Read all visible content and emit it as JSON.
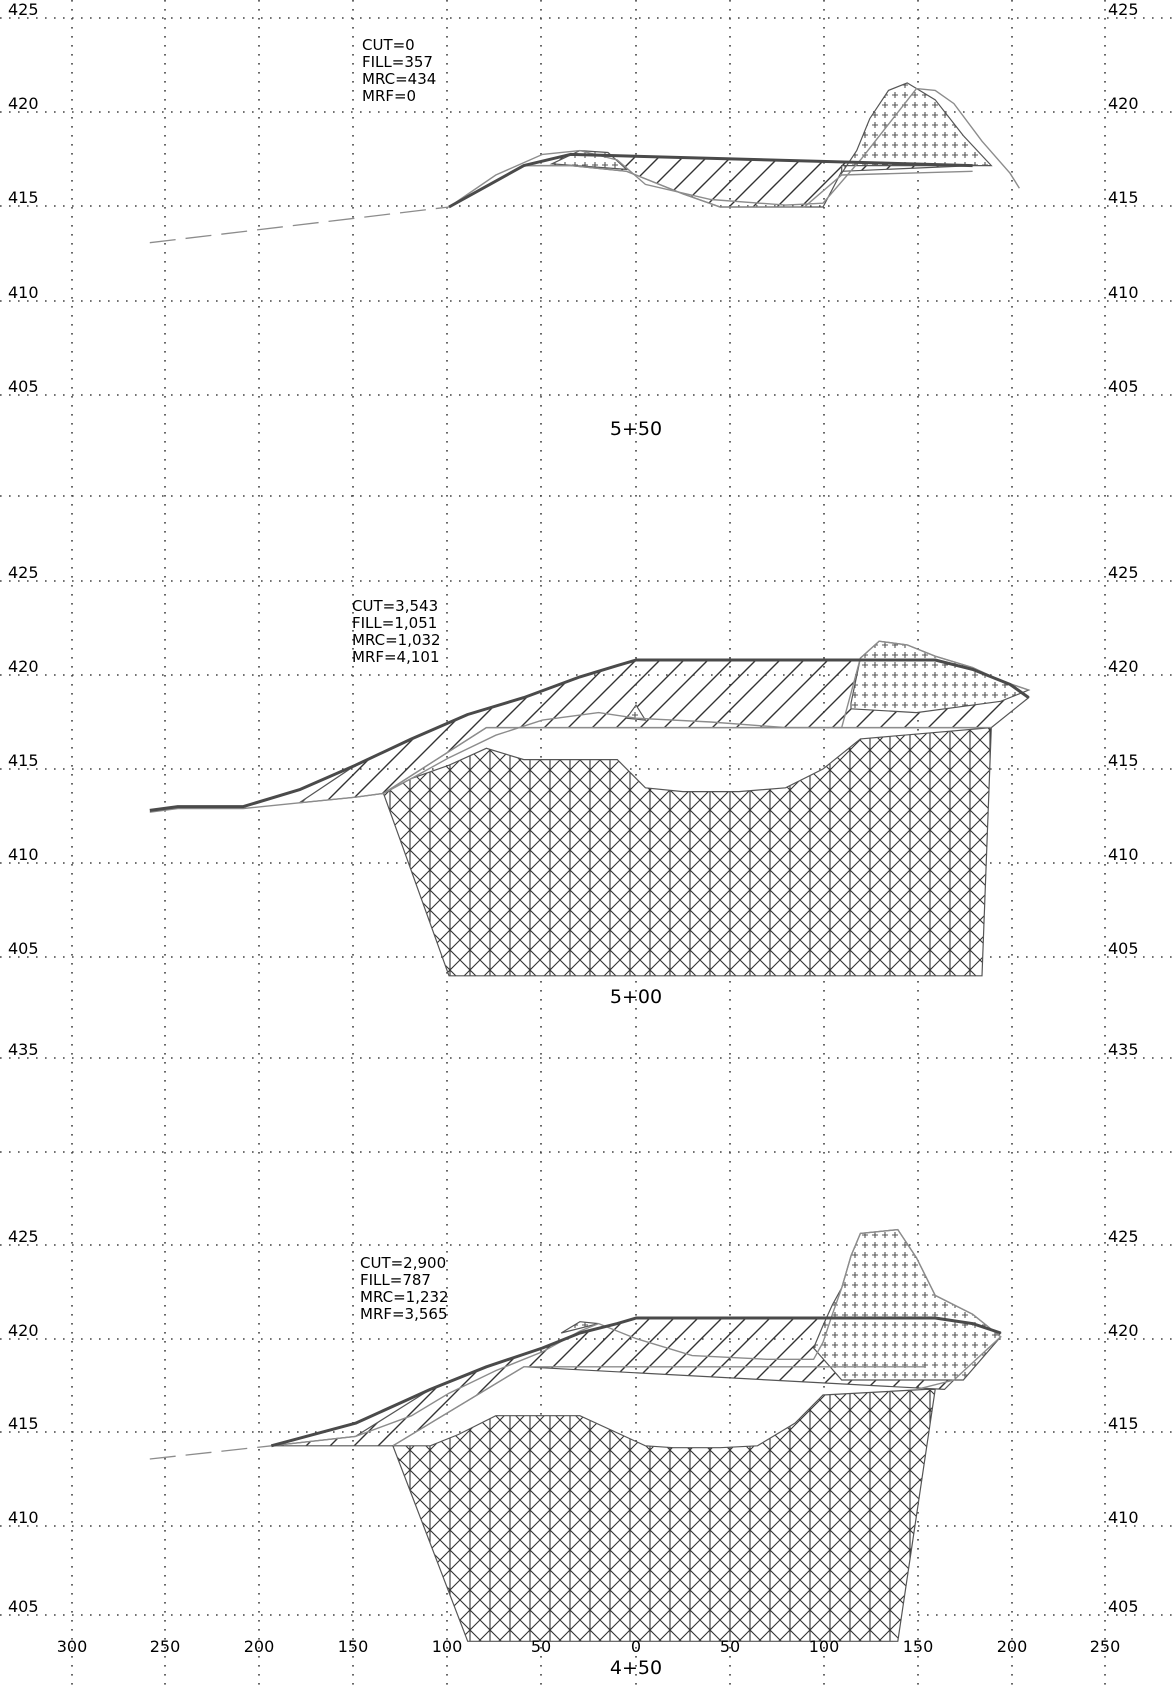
{
  "x_axis": {
    "ticks": [
      "300",
      "250",
      "200",
      "150",
      "100",
      "50",
      "0",
      "50",
      "100",
      "150",
      "200",
      "250"
    ],
    "values": [
      -300,
      -250,
      -200,
      -150,
      -100,
      -50,
      0,
      50,
      100,
      150,
      200,
      250
    ]
  },
  "sections": [
    {
      "station": "5+50",
      "elevations": [
        "425",
        "420",
        "415",
        "410",
        "405"
      ],
      "elevation_values": [
        425,
        420,
        415,
        410,
        405
      ],
      "volumes": [
        "CUT=0",
        "FILL=357",
        "MRC=434",
        "MRF=0"
      ],
      "existing_ground_dashed": [
        [
          -260,
          413.1
        ],
        [
          -100,
          415
        ]
      ],
      "existing_ground": [
        [
          -100,
          415
        ],
        [
          -75,
          416.7
        ],
        [
          -50,
          417.8
        ],
        [
          -30,
          418
        ],
        [
          -10,
          417.5
        ],
        [
          5,
          416.2
        ],
        [
          40,
          415.4
        ],
        [
          80,
          415.1
        ],
        [
          100,
          415.2
        ],
        [
          120,
          417.5
        ],
        [
          150,
          421.3
        ],
        [
          160,
          421.2
        ],
        [
          170,
          420.5
        ],
        [
          185,
          418.5
        ],
        [
          200,
          416.8
        ],
        [
          205,
          416
        ]
      ],
      "design_surface": [
        [
          -100,
          415
        ],
        [
          -80,
          416.1
        ],
        [
          -60,
          417.2
        ],
        [
          -35,
          417.8
        ],
        [
          180,
          417.2
        ]
      ],
      "bench": [
        [
          -60,
          417.2
        ],
        [
          -35,
          417.2
        ],
        [
          -5,
          416.9
        ],
        [
          25,
          415.7
        ],
        [
          45,
          415
        ],
        [
          90,
          415
        ],
        [
          110,
          416.7
        ],
        [
          180,
          416.9
        ]
      ],
      "fill_region": [
        [
          -60,
          417.2
        ],
        [
          -35,
          417.8
        ],
        [
          180,
          417.2
        ],
        [
          110,
          416.9
        ],
        [
          100,
          415
        ],
        [
          45,
          415
        ],
        [
          25,
          415.7
        ],
        [
          -5,
          416.9
        ],
        [
          -35,
          417.2
        ]
      ],
      "mrc_region": [
        [
          110,
          416.8
        ],
        [
          118,
          418
        ],
        [
          125,
          419.7
        ],
        [
          135,
          421.2
        ],
        [
          145,
          421.6
        ],
        [
          160,
          420.7
        ],
        [
          175,
          418.8
        ],
        [
          190,
          417.2
        ],
        [
          110,
          417.2
        ]
      ],
      "mrc_region_left": [
        [
          -45,
          417.3
        ],
        [
          -30,
          418
        ],
        [
          -15,
          417.9
        ],
        [
          -5,
          417
        ]
      ]
    },
    {
      "station": "5+00",
      "elevations": [
        "425",
        "420",
        "415",
        "410",
        "405"
      ],
      "elevation_values": [
        425,
        420,
        415,
        410,
        405
      ],
      "volumes": [
        "CUT=3,543",
        "FILL=1,051",
        "MRC=1,032",
        "MRF=4,101"
      ],
      "existing_ground": [
        [
          -260,
          412.7
        ],
        [
          -245,
          412.9
        ],
        [
          -210,
          412.9
        ],
        [
          -180,
          413.2
        ],
        [
          -150,
          413.5
        ],
        [
          -135,
          413.7
        ],
        [
          -120,
          414.5
        ],
        [
          -100,
          415.6
        ],
        [
          -75,
          416.8
        ],
        [
          -50,
          417.6
        ],
        [
          -20,
          418
        ],
        [
          0,
          417.7
        ],
        [
          40,
          417.5
        ],
        [
          80,
          417.2
        ],
        [
          110,
          417.2
        ],
        [
          120,
          420.9
        ],
        [
          130,
          421.8
        ],
        [
          145,
          421.6
        ],
        [
          160,
          421
        ],
        [
          180,
          420.4
        ],
        [
          195,
          419.7
        ],
        [
          210,
          419.2
        ]
      ],
      "design_surface": [
        [
          -260,
          412.8
        ],
        [
          -245,
          413
        ],
        [
          -210,
          413
        ],
        [
          -180,
          413.9
        ],
        [
          -150,
          415.2
        ],
        [
          -120,
          416.6
        ],
        [
          -90,
          417.9
        ],
        [
          -60,
          418.8
        ],
        [
          -30,
          419.9
        ],
        [
          -10,
          420.5
        ],
        [
          0,
          420.8
        ],
        [
          160,
          420.8
        ],
        [
          180,
          420.3
        ],
        [
          200,
          419.5
        ],
        [
          210,
          418.8
        ]
      ],
      "cut_region": [
        [
          -135,
          413.7
        ],
        [
          -120,
          414.5
        ],
        [
          -100,
          415.2
        ],
        [
          -80,
          416.1
        ],
        [
          -60,
          415.5
        ],
        [
          -40,
          415.5
        ],
        [
          -10,
          415.5
        ],
        [
          5,
          414
        ],
        [
          25,
          413.8
        ],
        [
          55,
          413.8
        ],
        [
          80,
          414
        ],
        [
          100,
          415
        ],
        [
          120,
          416.6
        ],
        [
          190,
          417.2
        ],
        [
          185,
          404
        ],
        [
          95,
          404
        ],
        [
          0,
          404
        ],
        [
          -100,
          404
        ]
      ],
      "cut_region_top": [
        [
          -135,
          413.7
        ],
        [
          -80,
          417.2
        ],
        [
          190,
          417.2
        ]
      ],
      "fill_region": [
        [
          -180,
          413.2
        ],
        [
          -150,
          415.2
        ],
        [
          -120,
          416.6
        ],
        [
          -90,
          417.9
        ],
        [
          -60,
          418.8
        ],
        [
          -30,
          419.9
        ],
        [
          -10,
          420.5
        ],
        [
          0,
          420.8
        ],
        [
          160,
          420.8
        ],
        [
          180,
          420.3
        ],
        [
          200,
          419.5
        ],
        [
          210,
          418.8
        ],
        [
          190,
          417.2
        ],
        [
          -80,
          417.2
        ],
        [
          -135,
          413.7
        ],
        [
          -150,
          413.5
        ]
      ],
      "mrc_region": [
        [
          115,
          418.5
        ],
        [
          120,
          420.9
        ],
        [
          130,
          421.8
        ],
        [
          145,
          421.6
        ],
        [
          160,
          421
        ],
        [
          180,
          420.4
        ],
        [
          195,
          419.7
        ],
        [
          210,
          419.2
        ],
        [
          195,
          418.6
        ],
        [
          150,
          418
        ],
        [
          115,
          418.2
        ]
      ],
      "mrc_region_left": [
        [
          -5,
          417.7
        ],
        [
          0,
          418.4
        ],
        [
          5,
          417.6
        ]
      ]
    },
    {
      "station": "4+50",
      "elevations": [
        "435",
        "425",
        "420",
        "415",
        "410",
        "405"
      ],
      "elevation_values": [
        435,
        425,
        420,
        415,
        410,
        405
      ],
      "volumes": [
        "CUT=2,900",
        "FILL=787",
        "MRC=1,232",
        "MRF=3,565"
      ],
      "existing_ground_dashed": [
        [
          -260,
          413.3
        ],
        [
          -195,
          414
        ]
      ],
      "existing_ground": [
        [
          -195,
          414
        ],
        [
          -150,
          414.5
        ],
        [
          -120,
          415.6
        ],
        [
          -100,
          416.8
        ],
        [
          -75,
          418
        ],
        [
          -50,
          419
        ],
        [
          -30,
          420.1
        ],
        [
          -20,
          420.5
        ],
        [
          0,
          419.7
        ],
        [
          30,
          418.8
        ],
        [
          70,
          418.6
        ],
        [
          95,
          418.6
        ],
        [
          100,
          419.5
        ],
        [
          105,
          421
        ],
        [
          110,
          422.4
        ],
        [
          115,
          424.1
        ],
        [
          120,
          425.3
        ],
        [
          140,
          425.5
        ],
        [
          150,
          424
        ],
        [
          160,
          422
        ],
        [
          180,
          421
        ],
        [
          195,
          419.8
        ],
        [
          170,
          417.5
        ],
        [
          150,
          417
        ]
      ],
      "design_surface": [
        [
          -195,
          414
        ],
        [
          -150,
          415.2
        ],
        [
          -110,
          417
        ],
        [
          -80,
          418.2
        ],
        [
          -50,
          419.2
        ],
        [
          -30,
          420
        ],
        [
          -10,
          420.5
        ],
        [
          0,
          420.8
        ],
        [
          160,
          420.8
        ],
        [
          180,
          420.5
        ],
        [
          195,
          420
        ]
      ],
      "cut_region": [
        [
          -130,
          414
        ],
        [
          -110,
          414
        ],
        [
          -95,
          414.6
        ],
        [
          -75,
          415.6
        ],
        [
          -30,
          415.6
        ],
        [
          5,
          414
        ],
        [
          20,
          413.9
        ],
        [
          45,
          413.9
        ],
        [
          65,
          414
        ],
        [
          85,
          415.2
        ],
        [
          100,
          416.7
        ],
        [
          155,
          417
        ],
        [
          160,
          417
        ],
        [
          140,
          403.6
        ],
        [
          -90,
          403.6
        ]
      ],
      "cut_region_top": [
        [
          -130,
          414
        ],
        [
          -60,
          418.2
        ],
        [
          155,
          418.2
        ]
      ],
      "fill_region": [
        [
          -150,
          414.5
        ],
        [
          -110,
          417
        ],
        [
          -80,
          418.2
        ],
        [
          -50,
          419.2
        ],
        [
          -30,
          420
        ],
        [
          -10,
          420.5
        ],
        [
          0,
          420.8
        ],
        [
          160,
          420.8
        ],
        [
          180,
          420.5
        ],
        [
          195,
          420
        ],
        [
          165,
          417
        ],
        [
          -60,
          418.2
        ],
        [
          -130,
          414
        ],
        [
          -195,
          414
        ]
      ],
      "mrc_region": [
        [
          95,
          419.2
        ],
        [
          100,
          420.4
        ],
        [
          105,
          421.5
        ],
        [
          110,
          422.4
        ],
        [
          115,
          424.1
        ],
        [
          120,
          425.3
        ],
        [
          140,
          425.5
        ],
        [
          150,
          424
        ],
        [
          160,
          422
        ],
        [
          180,
          421
        ],
        [
          195,
          419.8
        ],
        [
          175,
          417.5
        ],
        [
          110,
          417.5
        ]
      ],
      "mrc_region_left": [
        [
          -40,
          420
        ],
        [
          -30,
          420.6
        ],
        [
          -20,
          420.5
        ]
      ]
    }
  ]
}
